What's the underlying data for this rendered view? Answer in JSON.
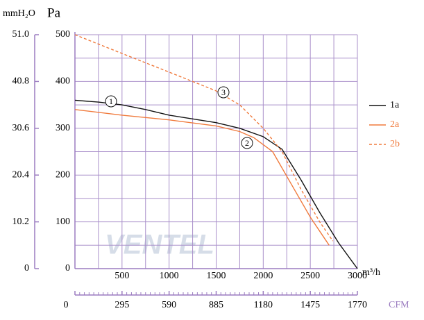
{
  "chart_data": {
    "type": "line",
    "y_unit": "Pa",
    "y2_unit": "mmH₂O",
    "x_unit": "m³/h",
    "x2_unit": "CFM",
    "watermark": "VENTEL",
    "xlim": [
      0,
      3000
    ],
    "xticks": [
      500,
      1000,
      1500,
      2000,
      2500,
      3000
    ],
    "ylim": [
      0,
      500
    ],
    "yticks": [
      0,
      100,
      200,
      300,
      400,
      500
    ],
    "y2lim": [
      0,
      51
    ],
    "y2ticks": [
      0,
      10.2,
      20.4,
      30.6,
      40.8,
      {
        "value": 51,
        "label": "51.0"
      }
    ],
    "x2lim": [
      0,
      1770
    ],
    "x2ticks": [
      0,
      295,
      590,
      885,
      1180,
      1475,
      1770
    ],
    "grid": true,
    "legend": "right",
    "series": [
      {
        "name": "1a",
        "color": "#111111",
        "dash": false,
        "x": [
          0,
          250,
          500,
          750,
          1000,
          1250,
          1500,
          1750,
          2000,
          2200,
          2400,
          2600,
          2800,
          3000
        ],
        "values": [
          360,
          356,
          350,
          340,
          328,
          320,
          312,
          300,
          282,
          255,
          190,
          120,
          55,
          0
        ]
      },
      {
        "name": "2a",
        "color": "#f07a3c",
        "dash": false,
        "x": [
          0,
          500,
          1000,
          1500,
          1750,
          1900,
          2100,
          2300,
          2500,
          2700
        ],
        "values": [
          340,
          328,
          318,
          305,
          293,
          280,
          250,
          180,
          110,
          50
        ]
      },
      {
        "name": "2b",
        "color": "#f07a3c",
        "dash": true,
        "x": [
          0,
          500,
          1000,
          1500,
          1750,
          2000,
          2200,
          2400,
          2600,
          2740
        ],
        "values": [
          500,
          460,
          420,
          380,
          350,
          300,
          250,
          170,
          100,
          59
        ]
      }
    ],
    "annotations": [
      "1",
      "2",
      "3"
    ]
  }
}
